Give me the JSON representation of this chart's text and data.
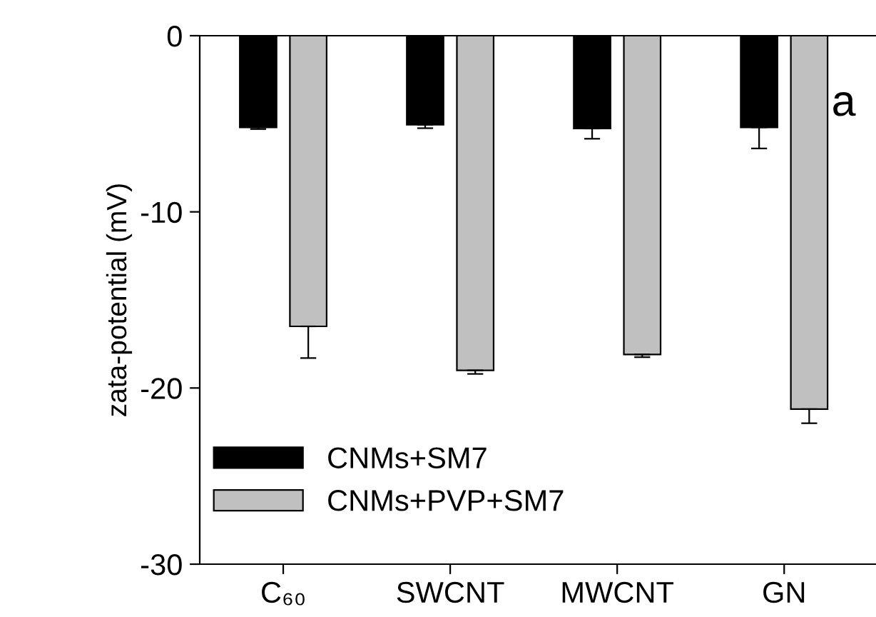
{
  "chart_data": {
    "type": "bar",
    "ylabel": "zata-potential (mV)",
    "categories": [
      "C₆₀",
      "SWCNT",
      "MWCNT",
      "GN"
    ],
    "series": [
      {
        "name": "CNMs+SM7",
        "color": "#000000",
        "values": [
          -5.2,
          -5.05,
          -5.27,
          -5.2
        ],
        "errors": [
          [
            -5.3,
            -5.2
          ],
          [
            -5.25,
            -5.05
          ],
          [
            -5.85,
            -5.27
          ],
          [
            -6.4,
            -5.2
          ]
        ]
      },
      {
        "name": "CNMs+PVP+SM7",
        "color": "#c0c0c0",
        "values": [
          -16.5,
          -19.0,
          -18.1,
          -21.2
        ],
        "errors": [
          [
            -18.3,
            -16.5
          ],
          [
            -19.2,
            -19.0
          ],
          [
            -18.25,
            -18.1
          ],
          [
            -22.0,
            -21.2
          ]
        ]
      }
    ],
    "ylim": [
      -30,
      0
    ],
    "yticks": [
      -30,
      -20,
      -10,
      0
    ],
    "annotations": [
      "a"
    ],
    "legend": "bottom left",
    "grid": false
  }
}
